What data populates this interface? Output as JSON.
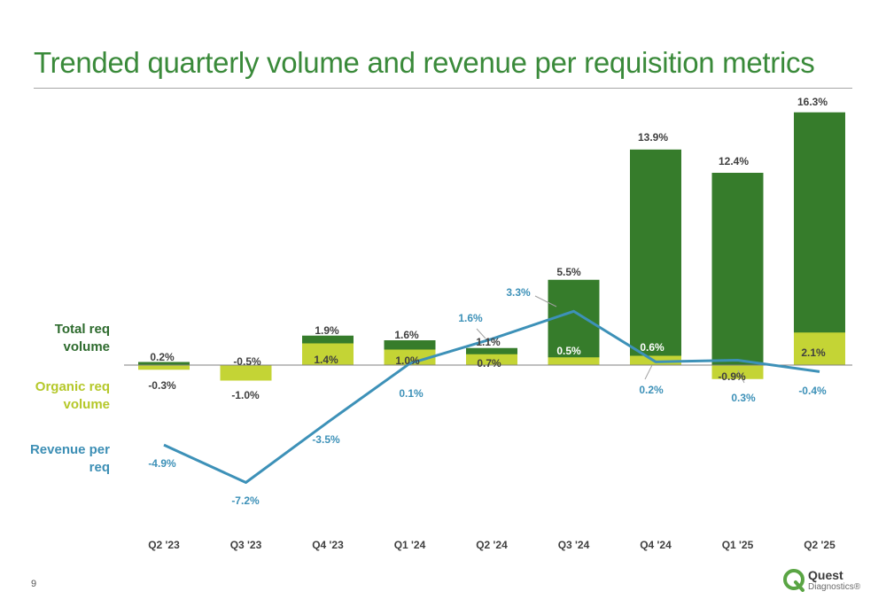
{
  "title": "Trended quarterly volume and revenue per requisition metrics",
  "page_number": "9",
  "legend": {
    "total": "Total req volume",
    "organic": "Organic req volume",
    "revenue": "Revenue per req"
  },
  "logo": {
    "name": "Quest",
    "sub": "Diagnostics®"
  },
  "colors": {
    "total": "#367c2b",
    "organic": "#c4d435",
    "revenue": "#3d91b8",
    "title": "#3a8a3a",
    "label_dark": "#404040"
  },
  "chart_data": {
    "type": "bar",
    "categories": [
      "Q2 '23",
      "Q3 '23",
      "Q4 '23",
      "Q1 '24",
      "Q2 '24",
      "Q3 '24",
      "Q4 '24",
      "Q1 '25",
      "Q2 '25"
    ],
    "series": [
      {
        "name": "Total req volume",
        "type": "bar",
        "values": [
          0.2,
          -0.5,
          1.9,
          1.6,
          1.1,
          5.5,
          13.9,
          12.4,
          16.3
        ],
        "labels": [
          "0.2%",
          "-0.5%",
          "1.9%",
          "1.6%",
          "1.1%",
          "5.5%",
          "13.9%",
          "12.4%",
          "16.3%"
        ]
      },
      {
        "name": "Organic req volume",
        "type": "bar",
        "values": [
          -0.3,
          -1.0,
          1.4,
          1.0,
          0.7,
          0.5,
          0.6,
          -0.9,
          2.1
        ],
        "labels": [
          "-0.3%",
          "-1.0%",
          "1.4%",
          "1.0%",
          "0.7%",
          "0.5%",
          "0.6%",
          "-0.9%",
          "2.1%"
        ]
      },
      {
        "name": "Revenue per req",
        "type": "line",
        "values": [
          -4.9,
          -7.2,
          -3.5,
          0.1,
          1.6,
          3.3,
          0.2,
          0.3,
          -0.4
        ],
        "labels": [
          "-4.9%",
          "-7.2%",
          "-3.5%",
          "0.1%",
          "1.6%",
          "3.3%",
          "0.2%",
          "0.3%",
          "-0.4%"
        ]
      }
    ],
    "ylim": [
      -8,
      17
    ],
    "grid": false,
    "legend_position": "left"
  }
}
